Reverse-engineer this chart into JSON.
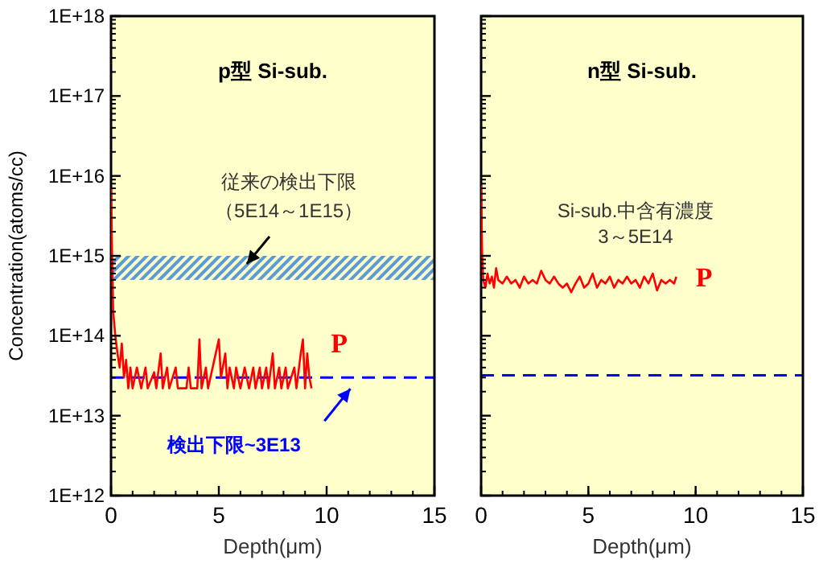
{
  "chart_data": [
    {
      "type": "line",
      "title": "p型 Si-sub.",
      "xlabel": "Depth(μm)",
      "ylabel": "Concentration(atoms/cc)",
      "log": "y",
      "xlim": [
        0,
        15
      ],
      "xticks": [
        0,
        5,
        10,
        15
      ],
      "ylim": [
        1000000000000.0,
        1e+18
      ],
      "yticks": [
        {
          "value": 1000000000000.0,
          "label": "1E+12"
        },
        {
          "value": 10000000000000.0,
          "label": "1E+13"
        },
        {
          "value": 100000000000000.0,
          "label": "1E+14"
        },
        {
          "value": 1000000000000000.0,
          "label": "1E+15"
        },
        {
          "value": 1e+16,
          "label": "1E+16"
        },
        {
          "value": 1e+17,
          "label": "1E+17"
        },
        {
          "value": 1e+18,
          "label": "1E+18"
        }
      ],
      "series": [
        {
          "name": "P",
          "color": "#ff0000",
          "x": [
            0,
            0.05,
            0.1,
            0.2,
            0.3,
            0.4,
            0.5,
            0.6,
            0.7,
            0.8,
            0.9,
            1.0,
            1.2,
            1.4,
            1.6,
            1.7,
            2.0,
            2.1,
            2.3,
            2.4,
            2.6,
            2.7,
            3.0,
            3.1,
            3.5,
            3.6,
            3.7,
            4.0,
            4.1,
            4.2,
            4.4,
            4.5,
            5.0,
            5.1,
            5.3,
            5.4,
            5.5,
            5.7,
            5.8,
            6.0,
            6.2,
            6.4,
            6.6,
            6.7,
            6.9,
            7.0,
            7.2,
            7.3,
            7.5,
            7.6,
            7.8,
            7.9,
            8.1,
            8.2,
            8.5,
            8.6,
            8.8,
            8.9,
            9.0,
            9.1,
            9.2,
            9.3
          ],
          "values": [
            7000000000000000.0,
            1000000000000000.0,
            200000000000000.0,
            100000000000000.0,
            60000000000000.0,
            40000000000000.0,
            80000000000000.0,
            30000000000000.0,
            50000000000000.0,
            22000000000000.0,
            40000000000000.0,
            22000000000000.0,
            40000000000000.0,
            22000000000000.0,
            40000000000000.0,
            22000000000000.0,
            35000000000000.0,
            22000000000000.0,
            60000000000000.0,
            22000000000000.0,
            40000000000000.0,
            22000000000000.0,
            40000000000000.0,
            22000000000000.0,
            22000000000000.0,
            40000000000000.0,
            22000000000000.0,
            22000000000000.0,
            90000000000000.0,
            22000000000000.0,
            40000000000000.0,
            22000000000000.0,
            90000000000000.0,
            30000000000000.0,
            60000000000000.0,
            22000000000000.0,
            40000000000000.0,
            22000000000000.0,
            40000000000000.0,
            22000000000000.0,
            40000000000000.0,
            22000000000000.0,
            40000000000000.0,
            22000000000000.0,
            40000000000000.0,
            22000000000000.0,
            40000000000000.0,
            22000000000000.0,
            60000000000000.0,
            22000000000000.0,
            40000000000000.0,
            22000000000000.0,
            40000000000000.0,
            22000000000000.0,
            40000000000000.0,
            22000000000000.0,
            60000000000000.0,
            90000000000000.0,
            22000000000000.0,
            60000000000000.0,
            30000000000000.0,
            22000000000000.0
          ]
        }
      ],
      "ref_lines": [
        {
          "axis": "y",
          "value": 30000000000000.0,
          "label": "検出下限~3E13",
          "color": "#0000ff",
          "line_style": "dashed"
        }
      ],
      "bands": [
        {
          "axis": "y",
          "from": 500000000000000.0,
          "to": 1000000000000000.0,
          "color": "#5b9bd5"
        }
      ],
      "annotations": [
        "従来の検出下限",
        "（5E14～1E15）"
      ]
    },
    {
      "type": "line",
      "title": "n型 Si-sub.",
      "xlabel": "Depth(μm)",
      "log": "y",
      "xlim": [
        0,
        15
      ],
      "xticks": [
        0,
        5,
        10,
        15
      ],
      "ylim": [
        1000000000000.0,
        1e+18
      ],
      "tick_labels": "x",
      "yticks": [
        {
          "value": 1000000000000.0,
          "label": null
        },
        {
          "value": 10000000000000.0,
          "label": null
        },
        {
          "value": 100000000000000.0,
          "label": null
        },
        {
          "value": 1000000000000000.0,
          "label": null
        },
        {
          "value": 1e+16,
          "label": null
        },
        {
          "value": 1e+17,
          "label": null
        },
        {
          "value": 1e+18,
          "label": null
        }
      ],
      "series": [
        {
          "name": "P",
          "color": "#ff0000",
          "x": [
            0,
            0.05,
            0.1,
            0.2,
            0.3,
            0.4,
            0.5,
            0.6,
            0.7,
            0.8,
            1.0,
            1.2,
            1.4,
            1.6,
            1.8,
            2.0,
            2.2,
            2.4,
            2.6,
            2.8,
            3.0,
            3.2,
            3.4,
            3.6,
            3.8,
            4.0,
            4.2,
            4.4,
            4.6,
            4.8,
            5.0,
            5.2,
            5.4,
            5.6,
            5.8,
            6.0,
            6.2,
            6.4,
            6.6,
            6.8,
            7.0,
            7.2,
            7.4,
            7.6,
            7.8,
            8.0,
            8.2,
            8.4,
            8.6,
            8.8,
            9.0,
            9.1
          ],
          "values": [
            7600000000000000.0,
            1000000000000000.0,
            500000000000000.0,
            400000000000000.0,
            600000000000000.0,
            450000000000000.0,
            550000000000000.0,
            400000000000000.0,
            700000000000000.0,
            500000000000000.0,
            450000000000000.0,
            550000000000000.0,
            450000000000000.0,
            500000000000000.0,
            400000000000000.0,
            550000000000000.0,
            450000000000000.0,
            500000000000000.0,
            450000000000000.0,
            650000000000000.0,
            500000000000000.0,
            450000000000000.0,
            550000000000000.0,
            450000000000000.0,
            400000000000000.0,
            450000000000000.0,
            350000000000000.0,
            450000000000000.0,
            550000000000000.0,
            400000000000000.0,
            450000000000000.0,
            600000000000000.0,
            400000000000000.0,
            500000000000000.0,
            450000000000000.0,
            550000000000000.0,
            400000000000000.0,
            500000000000000.0,
            450000000000000.0,
            550000000000000.0,
            450000000000000.0,
            500000000000000.0,
            400000000000000.0,
            550000000000000.0,
            450000000000000.0,
            600000000000000.0,
            370000000000000.0,
            500000000000000.0,
            450000000000000.0,
            500000000000000.0,
            450000000000000.0,
            550000000000000.0
          ]
        }
      ],
      "ref_lines": [
        {
          "axis": "y",
          "value": 32000000000000.0,
          "color": "#0000ff",
          "line_style": "dashed"
        }
      ],
      "annotations": [
        "Si-sub.中含有濃度\n3～5E14"
      ]
    }
  ]
}
